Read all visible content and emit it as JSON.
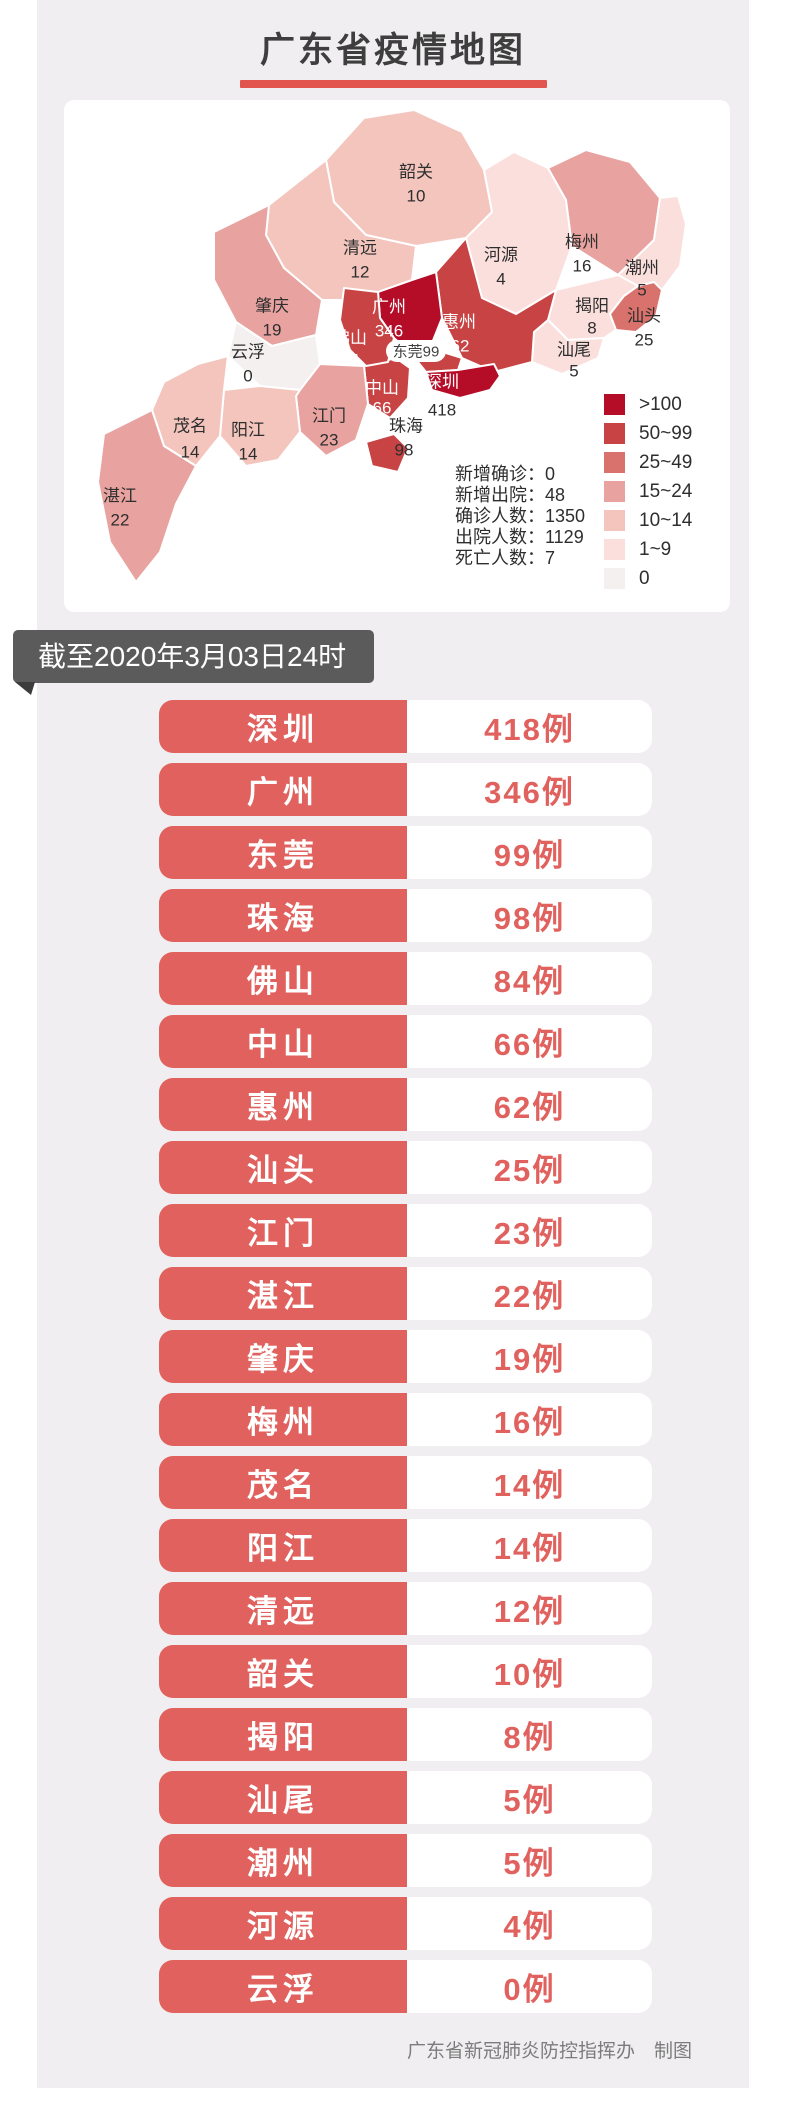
{
  "title": {
    "text": "广东省疫情地图"
  },
  "banner": {
    "text": "截至2020年3月03日24时"
  },
  "footer": {
    "text": "广东省新冠肺炎防控指挥办　制图"
  },
  "colors": {
    "panel_bg": "#f0eef0",
    "title_text": "#3e3e3e",
    "title_underline": "#e2544e",
    "banner_bg": "#5b5b5b",
    "banner_fold": "#3c3c3c",
    "row_red": "#e0615d",
    "map_label_dark": "#2e2e2e",
    "map_label_light": "#ffffff",
    "footer_text": "#7c7c7c"
  },
  "stats": {
    "lines": [
      {
        "label": "新增确诊",
        "value": "0"
      },
      {
        "label": "新增出院",
        "value": "48"
      },
      {
        "label": "确诊人数",
        "value": "1350"
      },
      {
        "label": "出院人数",
        "value": "1129"
      },
      {
        "label": "死亡人数",
        "value": "7"
      }
    ]
  },
  "legend": {
    "buckets": [
      {
        "label": ">100",
        "color": "#b50d28"
      },
      {
        "label": "50~99",
        "color": "#c84343"
      },
      {
        "label": "25~49",
        "color": "#d9726c"
      },
      {
        "label": "15~24",
        "color": "#e8a3a0"
      },
      {
        "label": "10~14",
        "color": "#f3c5bd"
      },
      {
        "label": "1~9",
        "color": "#fadfdc"
      },
      {
        "label": "0",
        "color": "#f3f0ef"
      }
    ]
  },
  "map": {
    "regions": [
      {
        "id": "shaoguan",
        "name": "韶关",
        "value": "10",
        "bucket": 4
      },
      {
        "id": "qingyuan",
        "name": "清远",
        "value": "12",
        "bucket": 4
      },
      {
        "id": "heyuan",
        "name": "河源",
        "value": "4",
        "bucket": 5
      },
      {
        "id": "meizhou",
        "name": "梅州",
        "value": "16",
        "bucket": 3
      },
      {
        "id": "chaozhou",
        "name": "潮州",
        "value": "5",
        "bucket": 5
      },
      {
        "id": "jieyang",
        "name": "揭阳",
        "value": "8",
        "bucket": 5
      },
      {
        "id": "shantou",
        "name": "汕头",
        "value": "25",
        "bucket": 2
      },
      {
        "id": "shanwei",
        "name": "汕尾",
        "value": "5",
        "bucket": 5
      },
      {
        "id": "huizhou",
        "name": "惠州",
        "value": "62",
        "bucket": 1
      },
      {
        "id": "guangzhou",
        "name": "广州",
        "value": "346",
        "bucket": 0
      },
      {
        "id": "dongguan",
        "name": "东莞",
        "value": "99",
        "bucket": 1
      },
      {
        "id": "shenzhen",
        "name": "深圳",
        "value": "418",
        "bucket": 0
      },
      {
        "id": "zhongshan",
        "name": "中山",
        "value": "66",
        "bucket": 1
      },
      {
        "id": "zhuhai",
        "name": "珠海",
        "value": "98",
        "bucket": 1
      },
      {
        "id": "foshan",
        "name": "佛山",
        "value": "84",
        "bucket": 1
      },
      {
        "id": "zhaoqing",
        "name": "肇庆",
        "value": "19",
        "bucket": 3
      },
      {
        "id": "yunfu",
        "name": "云浮",
        "value": "0",
        "bucket": 6
      },
      {
        "id": "jiangmen",
        "name": "江门",
        "value": "23",
        "bucket": 3
      },
      {
        "id": "yangjiang",
        "name": "阳江",
        "value": "14",
        "bucket": 4
      },
      {
        "id": "maoming",
        "name": "茂名",
        "value": "14",
        "bucket": 4
      },
      {
        "id": "zhanjiang",
        "name": "湛江",
        "value": "22",
        "bucket": 3
      }
    ]
  },
  "table": {
    "rows": [
      {
        "city": "深圳",
        "label": "418例"
      },
      {
        "city": "广州",
        "label": "346例"
      },
      {
        "city": "东莞",
        "label": "99例"
      },
      {
        "city": "珠海",
        "label": "98例"
      },
      {
        "city": "佛山",
        "label": "84例"
      },
      {
        "city": "中山",
        "label": "66例"
      },
      {
        "city": "惠州",
        "label": "62例"
      },
      {
        "city": "汕头",
        "label": "25例"
      },
      {
        "city": "江门",
        "label": "23例"
      },
      {
        "city": "湛江",
        "label": "22例"
      },
      {
        "city": "肇庆",
        "label": "19例"
      },
      {
        "city": "梅州",
        "label": "16例"
      },
      {
        "city": "茂名",
        "label": "14例"
      },
      {
        "city": "阳江",
        "label": "14例"
      },
      {
        "city": "清远",
        "label": "12例"
      },
      {
        "city": "韶关",
        "label": "10例"
      },
      {
        "city": "揭阳",
        "label": "8例"
      },
      {
        "city": "汕尾",
        "label": "5例"
      },
      {
        "city": "潮州",
        "label": "5例"
      },
      {
        "city": "河源",
        "label": "4例"
      },
      {
        "city": "云浮",
        "label": "0例"
      }
    ]
  },
  "chart_data": {
    "type": "heatmap",
    "subtype": "choropleth-map",
    "title": "广东省疫情地图",
    "categories": [
      "深圳",
      "广州",
      "东莞",
      "珠海",
      "佛山",
      "中山",
      "惠州",
      "汕头",
      "江门",
      "湛江",
      "肇庆",
      "梅州",
      "茂名",
      "阳江",
      "清远",
      "韶关",
      "揭阳",
      "汕尾",
      "潮州",
      "河源",
      "云浮"
    ],
    "values": [
      418,
      346,
      99,
      98,
      84,
      66,
      62,
      25,
      23,
      22,
      19,
      16,
      14,
      14,
      12,
      10,
      8,
      5,
      5,
      4,
      0
    ],
    "legend_buckets": [
      ">100",
      "50~99",
      "25~49",
      "15~24",
      "10~14",
      "1~9",
      "0"
    ],
    "summary": {
      "new_confirmed": 0,
      "new_discharged": 48,
      "total_confirmed": 1350,
      "total_discharged": 1129,
      "deaths": 7
    },
    "as_of": "截至2020年3月03日24时"
  }
}
